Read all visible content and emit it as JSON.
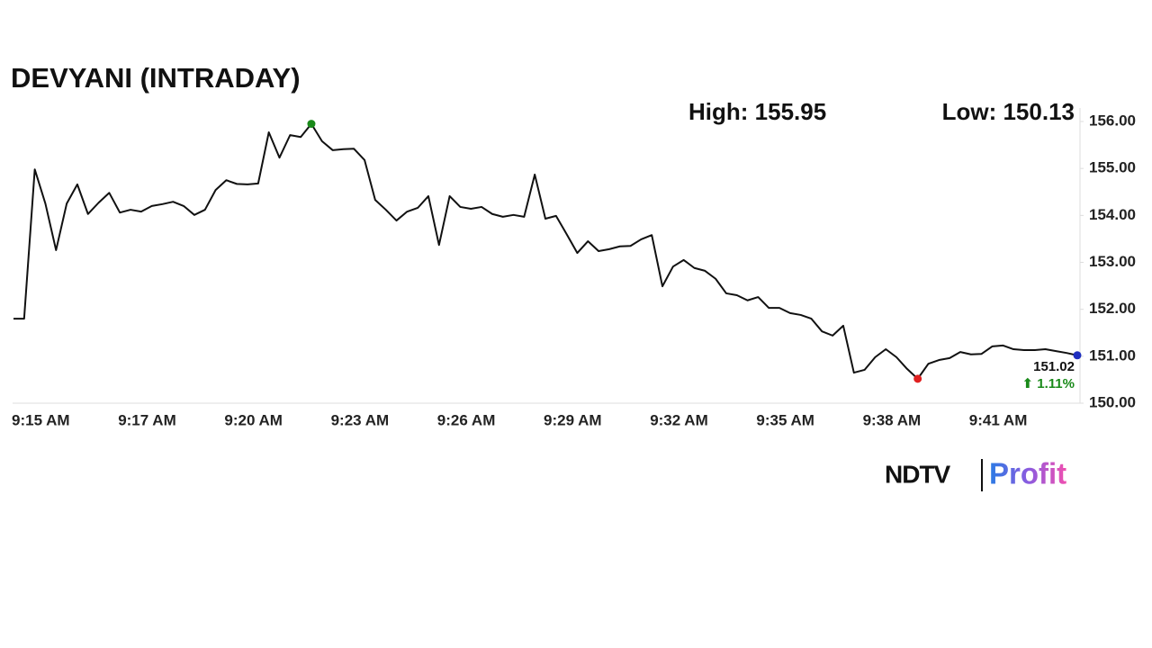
{
  "chart_data": {
    "type": "line",
    "title": "DEVYANI (INTRADAY)",
    "high_label": "High: 155.95",
    "low_label": "Low: 150.13",
    "last_label": "151.02",
    "change_label": "⬆ 1.11%",
    "categories": [
      "9:15 AM",
      null,
      null,
      null,
      null,
      null,
      null,
      null,
      null,
      null,
      "9:17 AM",
      null,
      null,
      null,
      null,
      null,
      null,
      null,
      null,
      null,
      "9:20 AM",
      null,
      null,
      null,
      null,
      null,
      null,
      null,
      null,
      null,
      "9:23 AM",
      null,
      null,
      null,
      null,
      null,
      null,
      null,
      null,
      null,
      "9:26 AM",
      null,
      null,
      null,
      null,
      null,
      null,
      null,
      null,
      null,
      "9:29 AM",
      null,
      null,
      null,
      null,
      null,
      null,
      null,
      null,
      null,
      "9:32 AM",
      null,
      null,
      null,
      null,
      null,
      null,
      null,
      null,
      null,
      "9:35 AM",
      null,
      null,
      null,
      null,
      null,
      null,
      null,
      null,
      null,
      "9:38 AM",
      null,
      null,
      null,
      null,
      null,
      null,
      null,
      null,
      null,
      "9:41 AM",
      null,
      null,
      null,
      null,
      null,
      null,
      null,
      null,
      null,
      null
    ],
    "series": [
      {
        "color": "#111111",
        "high_color": "#1a8a1a",
        "low_color": "#e02020",
        "last_color": "#1f2fbf",
        "values": [
          151.8,
          151.8,
          154.98,
          154.25,
          153.26,
          154.25,
          154.66,
          154.03,
          154.27,
          154.48,
          154.06,
          154.12,
          154.08,
          154.2,
          154.24,
          154.29,
          154.2,
          154.01,
          154.12,
          154.54,
          154.75,
          154.67,
          154.66,
          154.68,
          155.77,
          155.23,
          155.71,
          155.67,
          155.95,
          155.58,
          155.39,
          155.41,
          155.42,
          155.18,
          154.33,
          154.12,
          153.89,
          154.08,
          154.16,
          154.41,
          153.37,
          154.41,
          154.18,
          154.14,
          154.18,
          154.03,
          153.97,
          154.01,
          153.97,
          154.87,
          153.93,
          153.99,
          153.6,
          153.2,
          153.45,
          153.24,
          153.28,
          153.34,
          153.35,
          153.49,
          153.58,
          152.49,
          152.91,
          153.05,
          152.88,
          152.82,
          152.65,
          152.34,
          152.3,
          152.19,
          152.26,
          152.03,
          152.03,
          151.92,
          151.88,
          151.8,
          151.53,
          151.44,
          151.65,
          150.65,
          150.71,
          150.98,
          151.15,
          150.98,
          150.73,
          150.52,
          150.84,
          150.92,
          150.96,
          151.09,
          151.04,
          151.05,
          151.21,
          151.23,
          151.15,
          151.13,
          151.13,
          151.15,
          151.11,
          151.07,
          151.02
        ]
      }
    ],
    "ylim": [
      150,
      156
    ],
    "yticks": [
      {
        "value": 150,
        "label": "150.00"
      },
      {
        "value": 151,
        "label": "151.00"
      },
      {
        "value": 152,
        "label": "152.00"
      },
      {
        "value": 153,
        "label": "153.00"
      },
      {
        "value": 154,
        "label": "154.00"
      },
      {
        "value": 155,
        "label": "155.00"
      },
      {
        "value": 156,
        "label": "156.00"
      }
    ],
    "grid": false
  },
  "logo": {
    "left": "NDTV",
    "right": "Profit"
  }
}
